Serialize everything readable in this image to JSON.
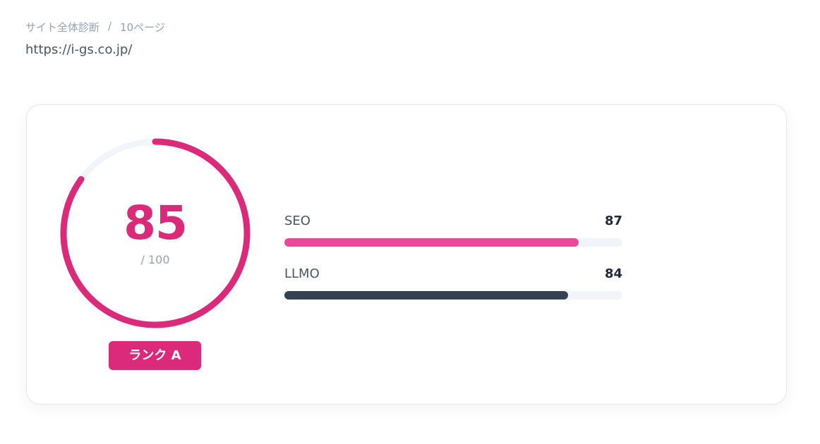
{
  "breadcrumb": {
    "items": [
      "サイト全体診断",
      "10ページ"
    ],
    "separator": "/"
  },
  "url": "https://i-gs.co.jp/",
  "score": {
    "value": 85,
    "total": {
      "value": 100,
      "label": "/ 100"
    },
    "color": "#dc2a7a",
    "track_color": "#f1f5f9",
    "rank": "ランク A"
  },
  "metrics": [
    {
      "name": "SEO",
      "value": 87,
      "color": "#ec4899"
    },
    {
      "name": "LLMO",
      "value": 84,
      "color": "#334155"
    }
  ]
}
